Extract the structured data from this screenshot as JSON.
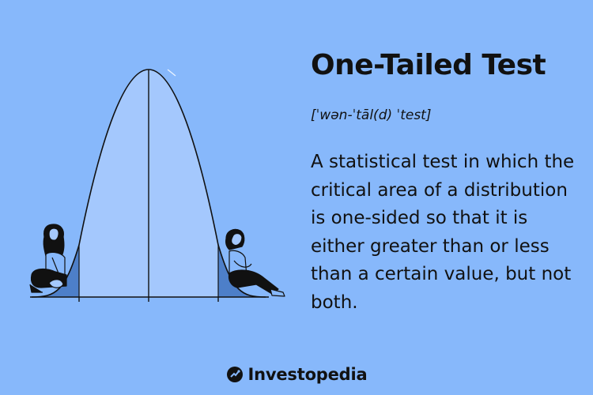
{
  "title": "One-Tailed Test",
  "pronunciation": "[ˈwən-ˈtāl(d) ˈtest]",
  "definition": "A statistical test in which the critical area of a distribution is one-sided so that it is either greater than or less than a certain value, but not both.",
  "brand": {
    "name": "Investopedia",
    "logo_icon": "investopedia-logo-icon"
  },
  "colors": {
    "background": "#87b8fb",
    "curve_fill": "#a4c8fd",
    "tail_fill": "#4d7fc9",
    "ink": "#111111"
  }
}
